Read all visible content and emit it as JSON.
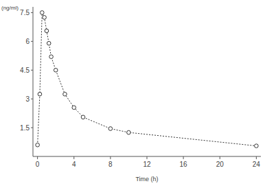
{
  "chart_data": {
    "type": "line",
    "y_label": "(ng/ml)",
    "x_label": "Time (h)",
    "x": [
      0,
      0.25,
      0.5,
      0.75,
      1,
      1.25,
      1.5,
      2,
      3,
      4,
      5,
      8,
      10,
      24
    ],
    "values": [
      0.6,
      3.25,
      7.5,
      7.25,
      6.55,
      5.9,
      5.2,
      4.5,
      3.25,
      2.55,
      2.05,
      1.45,
      1.25,
      0.55
    ],
    "xlim": [
      -0.5,
      24.5
    ],
    "xticks": [
      0,
      4,
      8,
      12,
      16,
      20,
      24
    ],
    "ylim": [
      0,
      7.8
    ],
    "yticks": [
      1.5,
      3,
      4.5,
      6,
      7.5
    ],
    "grid": false,
    "color": "#333333",
    "marker": "circle",
    "line_style": "dotted"
  }
}
